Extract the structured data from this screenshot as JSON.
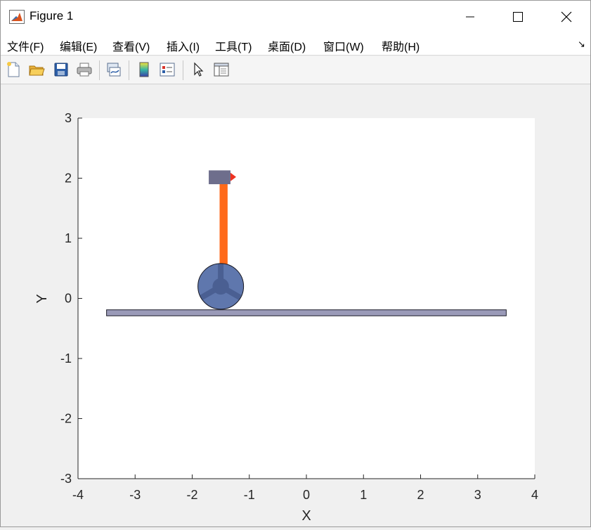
{
  "window": {
    "title": "Figure 1"
  },
  "menu": {
    "items": [
      "文件(F)",
      "编辑(E)",
      "查看(V)",
      "插入(I)",
      "工具(T)",
      "桌面(D)",
      "窗口(W)",
      "帮助(H)"
    ],
    "corner_arrow": "↘"
  },
  "toolbar": {
    "icons": [
      "new-figure-icon",
      "open-file-icon",
      "save-icon",
      "print-icon",
      "link-plot-icon",
      "insert-colorbar-icon",
      "insert-legend-icon",
      "edit-plot-arrow-icon",
      "property-inspector-icon"
    ]
  },
  "chart_data": {
    "type": "scatter",
    "xlabel": "X",
    "ylabel": "Y",
    "xlim": [
      -4,
      4
    ],
    "ylim": [
      -3,
      3
    ],
    "xticks": [
      -4,
      -3,
      -2,
      -1,
      0,
      1,
      2,
      3,
      4
    ],
    "yticks": [
      -3,
      -2,
      -1,
      0,
      1,
      2,
      3
    ],
    "xtick_labels": [
      "-4",
      "-3",
      "-2",
      "-1",
      "0",
      "1",
      "2",
      "3",
      "4"
    ],
    "ytick_labels": [
      "-3",
      "-2",
      "-1",
      "0",
      "1",
      "2",
      "3"
    ],
    "grid": false,
    "objects": {
      "ground": {
        "x": [
          -3.5,
          3.5
        ],
        "y": [
          -0.29,
          -0.19
        ],
        "color": "#9a9ab8"
      },
      "wheel": {
        "center": [
          -1.5,
          0.2
        ],
        "radius": 0.4,
        "color": "#5f77ad",
        "hub_color": "#4a5f92"
      },
      "pendulum_rod": {
        "x": [
          -1.52,
          -1.38
        ],
        "y": [
          0.4,
          1.97
        ],
        "color": "#ff6a1a"
      },
      "pendulum_mass": {
        "x": [
          -1.71,
          -1.33
        ],
        "y": [
          1.9,
          2.13
        ],
        "color": "#6e6e8c"
      },
      "tip_marker": {
        "x": -1.28,
        "y": 2.02,
        "color": "#ee3322"
      }
    }
  }
}
